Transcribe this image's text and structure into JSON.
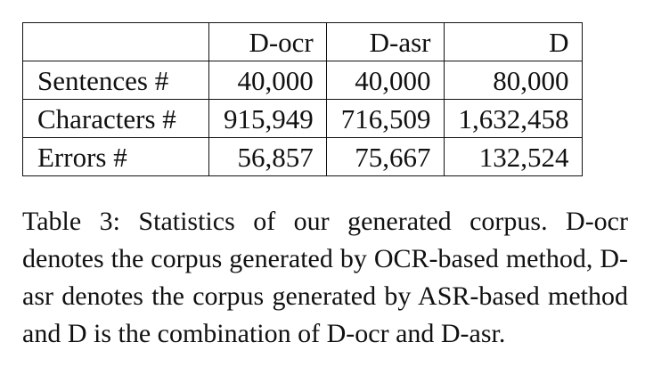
{
  "table": {
    "columns": [
      "",
      "D-ocr",
      "D-asr",
      "D"
    ],
    "rows": [
      {
        "label": "Sentences #",
        "values": [
          "40,000",
          "40,000",
          "80,000"
        ]
      },
      {
        "label": "Characters #",
        "values": [
          "915,949",
          "716,509",
          "1,632,458"
        ]
      },
      {
        "label": "Errors #",
        "values": [
          "56,857",
          "75,667",
          "132,524"
        ]
      }
    ]
  },
  "caption": {
    "text": "Table 3:  Statistics of our generated corpus.  D-ocr denotes the corpus generated by OCR-based method, D-asr denotes the corpus generated by ASR-based method and D is the combination of D-ocr and D-asr."
  }
}
